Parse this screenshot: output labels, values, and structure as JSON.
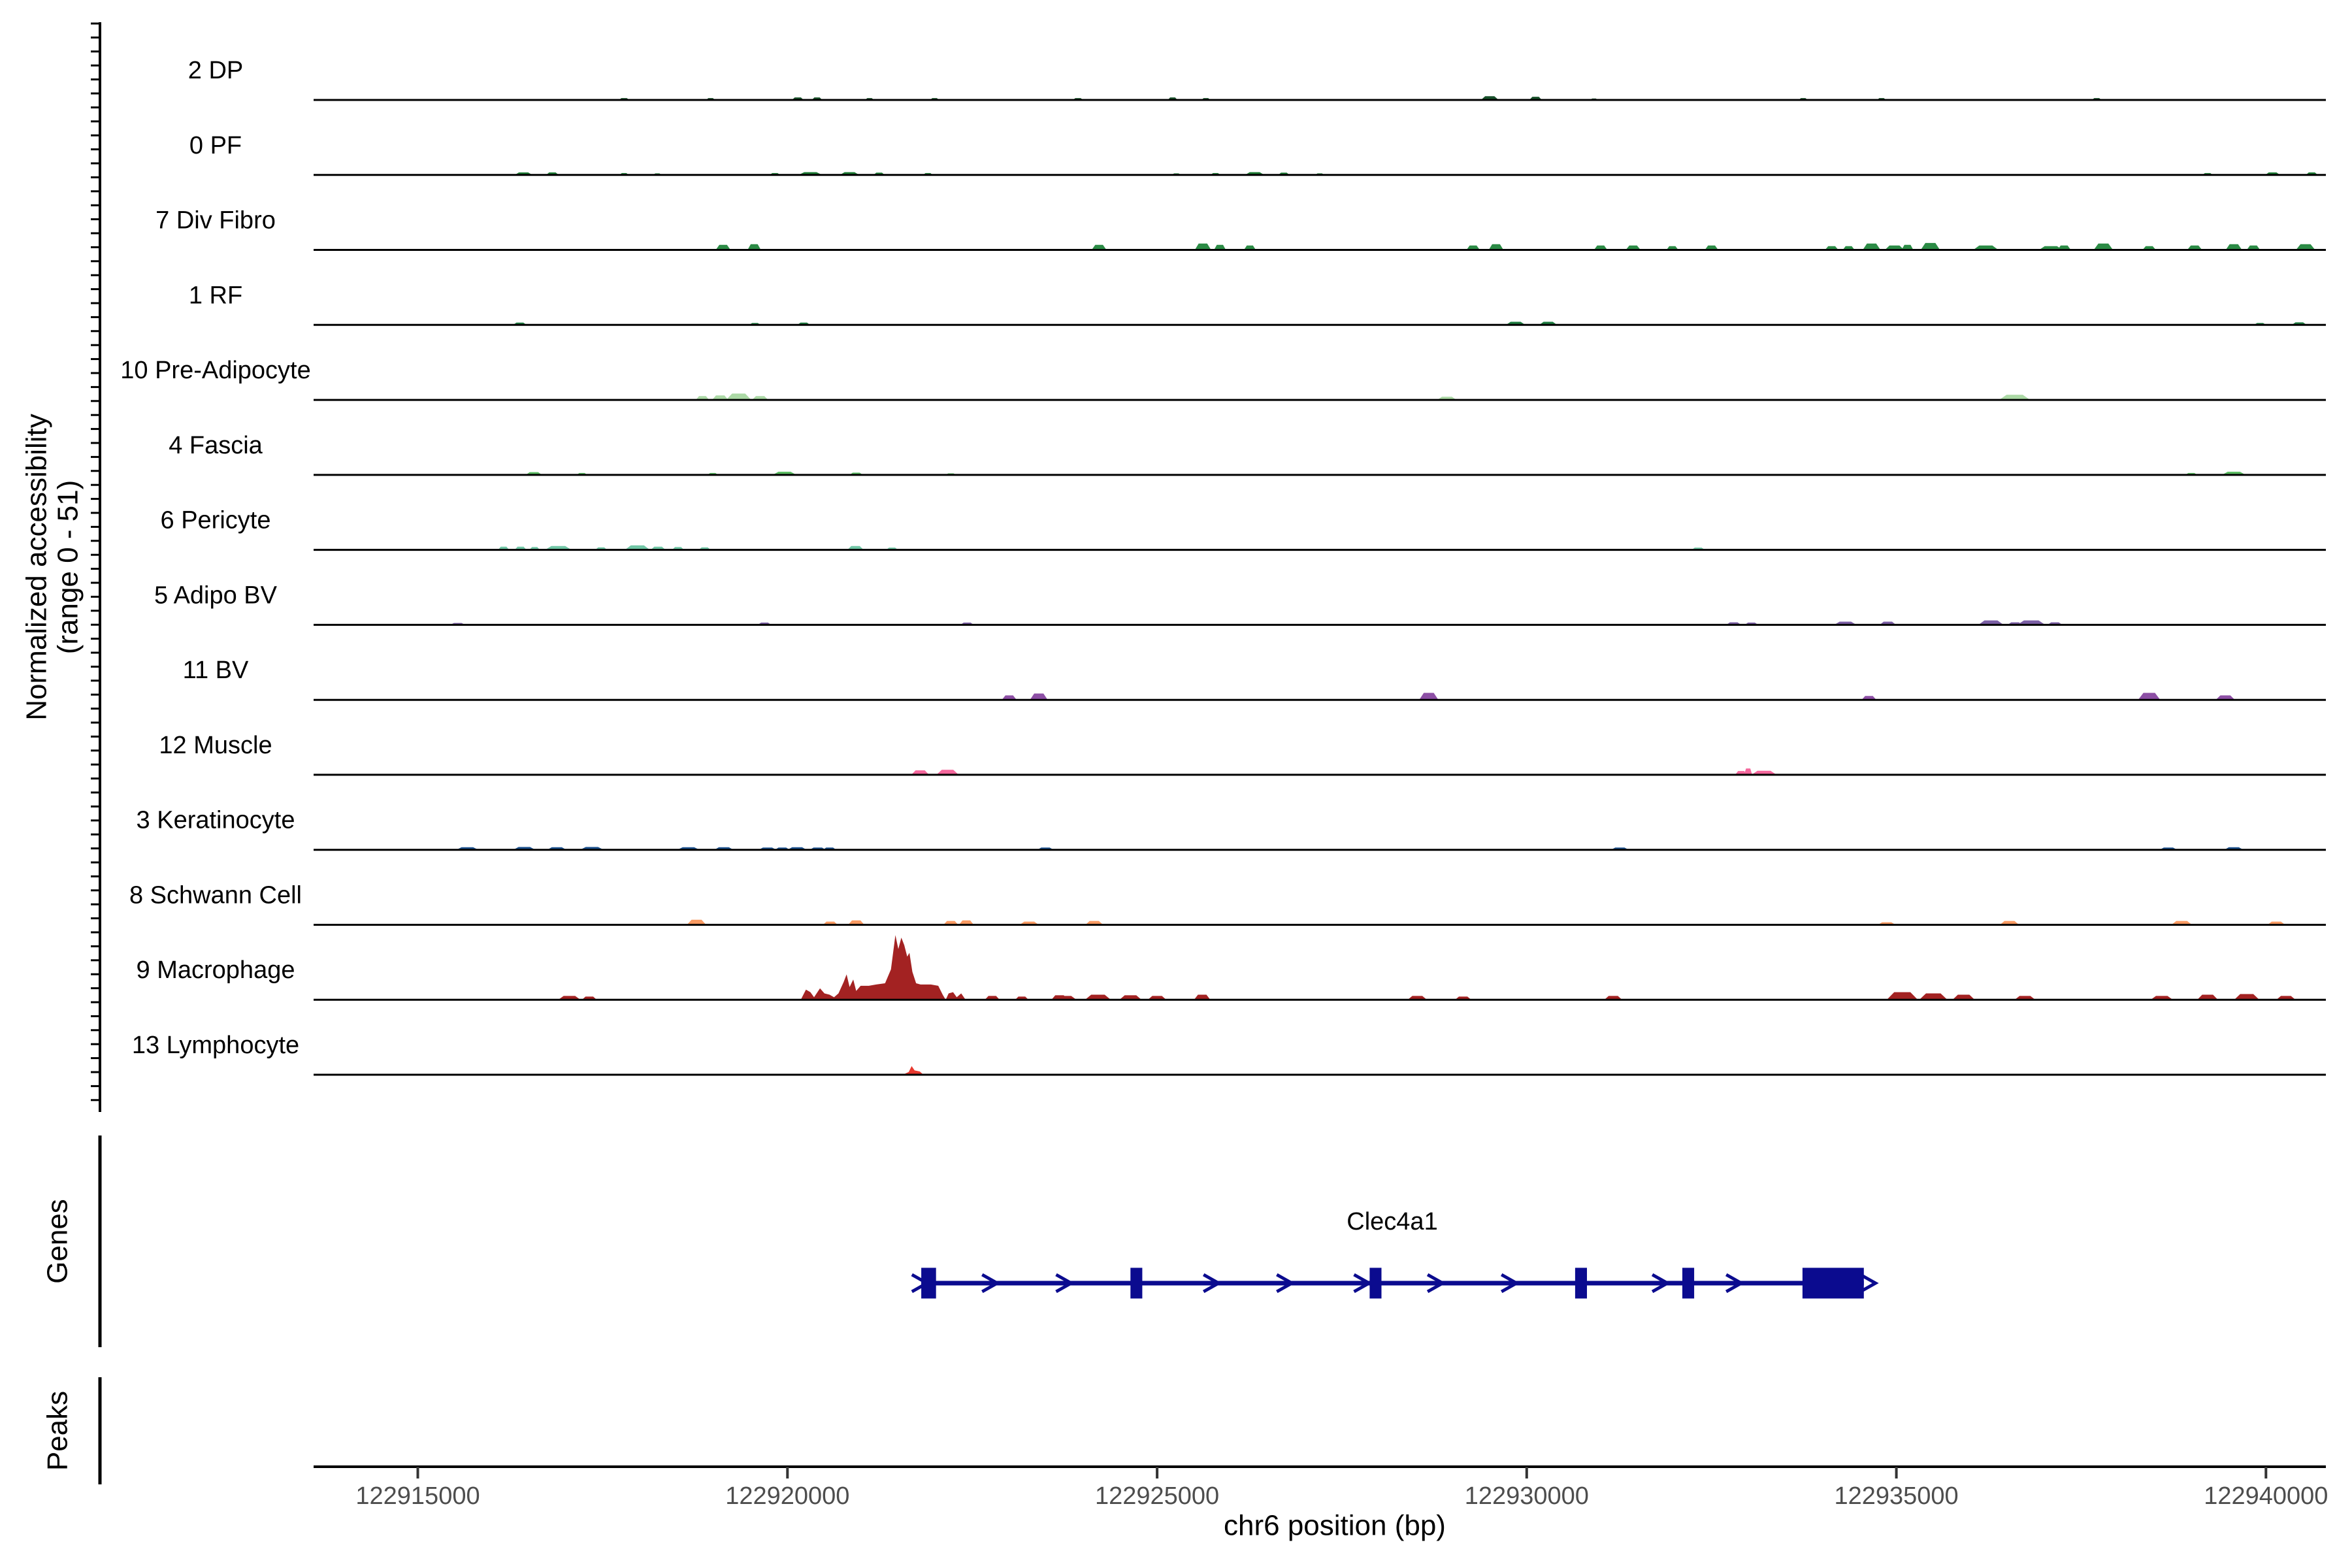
{
  "figure": {
    "y_axis_label_line1": "Normalized accessibility",
    "y_axis_label_line2": "(range 0 - 51)",
    "x_axis_label": "chr6 position (bp)",
    "genes_section_label": "Genes",
    "peaks_section_label": "Peaks"
  },
  "chart_data": {
    "type": "area",
    "title": "",
    "region": {
      "chromosome": "chr6",
      "start": 122913590,
      "end": 122940810,
      "unit": "bp"
    },
    "x_axis": {
      "label": "chr6 position (bp)",
      "tick_values": [
        122915000,
        122920000,
        122925000,
        122930000,
        122935000,
        122940000
      ],
      "tick_labels": [
        "122915000",
        "122920000",
        "122925000",
        "122930000",
        "122935000",
        "122940000"
      ]
    },
    "y_axis": {
      "label": "Normalized accessibility (range 0 - 51)",
      "range": [
        0,
        51
      ]
    },
    "tracks": [
      {
        "label": "2 DP",
        "color": "#17502a",
        "peaks": [
          [
            122917790,
            140,
            1.5
          ],
          [
            122918960,
            120,
            1.5
          ],
          [
            122920140,
            160,
            2
          ],
          [
            122920400,
            140,
            2
          ],
          [
            122921110,
            120,
            1.5
          ],
          [
            122921990,
            120,
            1.5
          ],
          [
            122923930,
            140,
            1.5
          ],
          [
            122925210,
            130,
            2
          ],
          [
            122925660,
            120,
            1.5
          ],
          [
            122929500,
            240,
            3
          ],
          [
            122930120,
            170,
            2.5
          ],
          [
            122930910,
            100,
            1.2
          ],
          [
            122933740,
            120,
            1.5
          ],
          [
            122934800,
            120,
            1.5
          ],
          [
            122937710,
            130,
            1.5
          ]
        ]
      },
      {
        "label": "0 PF",
        "color": "#1c7a33",
        "peaks": [
          [
            122916430,
            240,
            2
          ],
          [
            122916820,
            170,
            2
          ],
          [
            122917790,
            120,
            1.5
          ],
          [
            122918240,
            110,
            1.2
          ],
          [
            122919830,
            140,
            1.5
          ],
          [
            122920310,
            320,
            2.2
          ],
          [
            122920840,
            260,
            2.2
          ],
          [
            122921240,
            150,
            1.8
          ],
          [
            122921900,
            130,
            1.5
          ],
          [
            122925260,
            120,
            1.2
          ],
          [
            122925790,
            130,
            1.5
          ],
          [
            122926320,
            260,
            2.2
          ],
          [
            122926715,
            150,
            1.8
          ],
          [
            122927200,
            120,
            1.2
          ],
          [
            122939210,
            140,
            1.5
          ],
          [
            122940090,
            200,
            2
          ],
          [
            122940620,
            160,
            2
          ]
        ]
      },
      {
        "label": "7 Div Fibro",
        "color": "#2b8b45",
        "peaks": [
          [
            122919130,
            200,
            4
          ],
          [
            122919550,
            180,
            4.5
          ],
          [
            122924215,
            200,
            4
          ],
          [
            122925620,
            220,
            5
          ],
          [
            122925850,
            160,
            4
          ],
          [
            122926255,
            160,
            3.5
          ],
          [
            122929275,
            180,
            3.5
          ],
          [
            122929585,
            200,
            4.5
          ],
          [
            122931000,
            180,
            3.5
          ],
          [
            122931440,
            200,
            3.5
          ],
          [
            122931970,
            160,
            3
          ],
          [
            122932500,
            180,
            3.5
          ],
          [
            122934125,
            180,
            3
          ],
          [
            122934355,
            160,
            3
          ],
          [
            122934665,
            240,
            5
          ],
          [
            122934975,
            260,
            3.5
          ],
          [
            122935150,
            160,
            4
          ],
          [
            122935460,
            260,
            5.5
          ],
          [
            122936210,
            340,
            3.5
          ],
          [
            122937090,
            320,
            3
          ],
          [
            122937270,
            180,
            3.5
          ],
          [
            122937800,
            260,
            5
          ],
          [
            122938420,
            180,
            3
          ],
          [
            122939035,
            200,
            3.5
          ],
          [
            122939565,
            220,
            4.5
          ],
          [
            122939830,
            180,
            3.5
          ],
          [
            122940535,
            260,
            4.5
          ]
        ]
      },
      {
        "label": "1 RF",
        "color": "#1e7d40",
        "peaks": [
          [
            122916380,
            180,
            1.8
          ],
          [
            122919560,
            150,
            1.5
          ],
          [
            122920220,
            170,
            1.8
          ],
          [
            122929850,
            260,
            2.5
          ],
          [
            122930290,
            240,
            2.5
          ],
          [
            122939920,
            160,
            1.5
          ],
          [
            122940450,
            200,
            2
          ]
        ]
      },
      {
        "label": "10 Pre-Adipocyte",
        "color": "#abd9a5",
        "peaks": [
          [
            122918850,
            180,
            3
          ],
          [
            122919090,
            220,
            3.5
          ],
          [
            122919340,
            340,
            5
          ],
          [
            122919630,
            220,
            3
          ],
          [
            122928920,
            260,
            2.5
          ],
          [
            122936600,
            420,
            4
          ]
        ]
      },
      {
        "label": "4 Fascia",
        "color": "#5cbd63",
        "peaks": [
          [
            122916570,
            220,
            2.2
          ],
          [
            122917220,
            140,
            1.5
          ],
          [
            122918990,
            140,
            1.5
          ],
          [
            122919960,
            320,
            2.5
          ],
          [
            122920930,
            180,
            1.8
          ],
          [
            122922210,
            140,
            1.2
          ],
          [
            122938990,
            160,
            1.5
          ],
          [
            122939565,
            320,
            2.5
          ]
        ]
      },
      {
        "label": "6 Pericyte",
        "color": "#70c6a5",
        "peaks": [
          [
            122916160,
            150,
            2.5
          ],
          [
            122916390,
            160,
            2.5
          ],
          [
            122916580,
            140,
            2.2
          ],
          [
            122916900,
            360,
            3
          ],
          [
            122917480,
            160,
            2
          ],
          [
            122917970,
            340,
            3.5
          ],
          [
            122918250,
            200,
            2.5
          ],
          [
            122918520,
            160,
            2.2
          ],
          [
            122918880,
            160,
            2
          ],
          [
            122920920,
            220,
            3
          ],
          [
            122921415,
            160,
            1.8
          ],
          [
            122932320,
            180,
            1.8
          ]
        ]
      },
      {
        "label": "5 Adipo BV",
        "color": "#7b5fa5",
        "peaks": [
          [
            122915540,
            200,
            1.5
          ],
          [
            122919690,
            180,
            1.8
          ],
          [
            122922430,
            180,
            1.8
          ],
          [
            122932800,
            200,
            2
          ],
          [
            122933040,
            180,
            1.8
          ],
          [
            122934310,
            300,
            2.5
          ],
          [
            122934885,
            220,
            2.5
          ],
          [
            122936280,
            340,
            3.5
          ],
          [
            122936605,
            200,
            2
          ],
          [
            122936825,
            380,
            3.5
          ],
          [
            122937145,
            200,
            2
          ]
        ]
      },
      {
        "label": "11 BV",
        "color": "#8d4fa5",
        "peaks": [
          [
            122923000,
            200,
            3.5
          ],
          [
            122923400,
            240,
            5
          ],
          [
            122928675,
            260,
            5.5
          ],
          [
            122934630,
            200,
            3
          ],
          [
            122938420,
            300,
            5.5
          ],
          [
            122939450,
            260,
            3.5
          ]
        ]
      },
      {
        "label": "12 Muscle",
        "color": "#f4679c",
        "peaks": [
          [
            122921795,
            240,
            3.5
          ],
          [
            122922165,
            300,
            4
          ],
          [
            122932900,
            160,
            3
          ],
          [
            122932995,
            110,
            5
          ],
          [
            122933210,
            340,
            3.2
          ]
        ]
      },
      {
        "label": "3 Keratinocyte",
        "color": "#1a4f8c",
        "peaks": [
          [
            122915670,
            300,
            2
          ],
          [
            122916440,
            300,
            2.2
          ],
          [
            122916880,
            260,
            2
          ],
          [
            122917355,
            320,
            2.2
          ],
          [
            122918660,
            300,
            2
          ],
          [
            122919140,
            260,
            2
          ],
          [
            122919730,
            240,
            1.8
          ],
          [
            122919930,
            200,
            1.8
          ],
          [
            122920130,
            260,
            2
          ],
          [
            122920410,
            220,
            1.8
          ],
          [
            122920570,
            180,
            1.8
          ],
          [
            122923490,
            220,
            1.8
          ],
          [
            122931260,
            240,
            1.8
          ],
          [
            122938680,
            240,
            1.8
          ],
          [
            122939565,
            260,
            2
          ]
        ]
      },
      {
        "label": "8 Schwann Cell",
        "color": "#f89a62",
        "peaks": [
          [
            122918770,
            260,
            4
          ],
          [
            122920580,
            200,
            2.5
          ],
          [
            122920930,
            220,
            3.5
          ],
          [
            122922210,
            200,
            3
          ],
          [
            122922420,
            200,
            3.5
          ],
          [
            122923270,
            260,
            2.5
          ],
          [
            122924150,
            240,
            3
          ],
          [
            122934870,
            240,
            2
          ],
          [
            122936530,
            260,
            3
          ],
          [
            122938860,
            280,
            3
          ],
          [
            122940140,
            240,
            2.5
          ]
        ]
      },
      {
        "label": "9 Macrophage",
        "color": "#a32222",
        "profile": [
          [
            122920180,
            0
          ],
          [
            122920250,
            8
          ],
          [
            122920310,
            6
          ],
          [
            122920360,
            2
          ],
          [
            122920440,
            9
          ],
          [
            122920500,
            5
          ],
          [
            122920570,
            4
          ],
          [
            122920630,
            2
          ],
          [
            122920690,
            5
          ],
          [
            122920760,
            14
          ],
          [
            122920800,
            20
          ],
          [
            122920840,
            10
          ],
          [
            122920890,
            16
          ],
          [
            122920930,
            7
          ],
          [
            122920990,
            11
          ],
          [
            122921100,
            11
          ],
          [
            122921200,
            12
          ],
          [
            122921320,
            13
          ],
          [
            122921400,
            24
          ],
          [
            122921460,
            51
          ],
          [
            122921500,
            40
          ],
          [
            122921540,
            49
          ],
          [
            122921580,
            43
          ],
          [
            122921620,
            34
          ],
          [
            122921650,
            37
          ],
          [
            122921690,
            22
          ],
          [
            122921740,
            13
          ],
          [
            122921800,
            12
          ],
          [
            122921940,
            12
          ],
          [
            122922040,
            11
          ],
          [
            122922100,
            4
          ],
          [
            122922140,
            0
          ],
          [
            122922180,
            5
          ],
          [
            122922240,
            6
          ],
          [
            122922290,
            2
          ],
          [
            122922350,
            5
          ],
          [
            122922410,
            0
          ]
        ],
        "peaks": [
          [
            122917050,
            300,
            3
          ],
          [
            122917320,
            200,
            2.5
          ],
          [
            122922770,
            200,
            3
          ],
          [
            122923170,
            180,
            2.5
          ],
          [
            122923680,
            220,
            3.5
          ],
          [
            122923760,
            300,
            3
          ],
          [
            122924200,
            350,
            4
          ],
          [
            122924640,
            300,
            3.5
          ],
          [
            122925000,
            250,
            3
          ],
          [
            122925610,
            220,
            4
          ],
          [
            122928520,
            260,
            3
          ],
          [
            122929140,
            220,
            2.5
          ],
          [
            122931170,
            240,
            3
          ],
          [
            122935080,
            420,
            6
          ],
          [
            122935500,
            380,
            5
          ],
          [
            122935910,
            300,
            4
          ],
          [
            122936740,
            280,
            3
          ],
          [
            122938590,
            300,
            3
          ],
          [
            122939210,
            280,
            4
          ],
          [
            122939740,
            340,
            4.5
          ],
          [
            122940270,
            260,
            3
          ]
        ]
      },
      {
        "label": "13 Lymphocyte",
        "color": "#e8392f",
        "profile": [
          [
            122921560,
            0
          ],
          [
            122921640,
            2.2
          ],
          [
            122921680,
            6.8
          ],
          [
            122921720,
            3.4
          ],
          [
            122921790,
            2.6
          ],
          [
            122921840,
            0
          ]
        ],
        "peaks": []
      }
    ],
    "gene_track": {
      "section_label": "Genes",
      "genes": [
        {
          "name": "Clec4a1",
          "color": "#0b0b8f",
          "strand": "+",
          "start": 122921810,
          "end": 122934560,
          "exons": [
            [
              122921810,
              122922010
            ],
            [
              122924640,
              122924800
            ],
            [
              122927875,
              122928035
            ],
            [
              122930655,
              122930815
            ],
            [
              122932105,
              122932265
            ],
            [
              122933730,
              122934560
            ]
          ],
          "arrow_positions": [
            122921790,
            122922740,
            122923740,
            122925735,
            122926725,
            122927770,
            122928765,
            122929765,
            122931805,
            122932805,
            122934620
          ]
        }
      ]
    },
    "peaks_track": {
      "section_label": "Peaks",
      "features": []
    }
  }
}
